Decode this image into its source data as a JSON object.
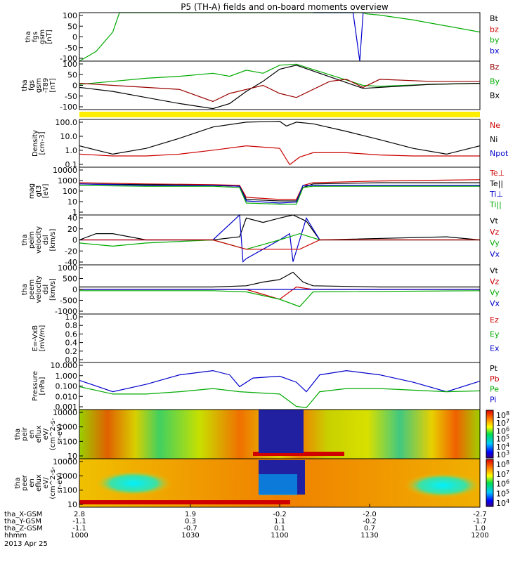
{
  "title": "P5 (TH-A) fields and on-board moments overview",
  "panels": [
    {
      "id": "fgs",
      "ylabel": [
        "tha",
        "fgs",
        "gsm",
        "[nT]"
      ],
      "yticks": [
        "100",
        "50",
        "0",
        "-50",
        "-100"
      ],
      "legend": [
        {
          "label": "Bt",
          "color": "#000000"
        },
        {
          "label": "bz",
          "color": "#cc0000"
        },
        {
          "label": "by",
          "color": "#00aa00"
        },
        {
          "label": "bx",
          "color": "#0000cc"
        }
      ]
    },
    {
      "id": "fgs_zoom",
      "ylabel": [
        "tha",
        "fgs",
        "gsm",
        "-T89",
        "[nT]"
      ],
      "yticks": [
        "100",
        "50",
        "0",
        "-50",
        "-100"
      ],
      "legend": [
        {
          "label": "Bz",
          "color": "#990000"
        },
        {
          "label": "By",
          "color": "#00aa00"
        },
        {
          "label": "Bx",
          "color": "#000000"
        }
      ]
    },
    {
      "id": "density",
      "ylabel": [
        "Density",
        "[cm-3]"
      ],
      "yticks": [
        "100.0",
        "10.0",
        "1.0",
        "0.1"
      ],
      "legend": [
        {
          "label": "Ne",
          "color": "#cc0000"
        },
        {
          "label": "Ni",
          "color": "#000000"
        },
        {
          "label": "Npot",
          "color": "#0000cc"
        }
      ]
    },
    {
      "id": "temperature",
      "ylabel": [
        "mag",
        "gt3",
        "[eV]"
      ],
      "yticks": [
        "10000",
        "1000",
        "100",
        "10",
        "1"
      ],
      "legend": [
        {
          "label": "Te⊥",
          "color": "#cc0000"
        },
        {
          "label": "Te||",
          "color": "#000000"
        },
        {
          "label": "Ti⊥",
          "color": "#0000cc"
        },
        {
          "label": "Ti||",
          "color": "#00aa00"
        }
      ]
    },
    {
      "id": "peim_velocity",
      "ylabel": [
        "tha",
        "peim",
        "velocity",
        "dsl",
        "[km/s]"
      ],
      "yticks": [
        "40",
        "20",
        "0",
        "-20",
        "-40"
      ],
      "legend": [
        {
          "label": "Vt",
          "color": "#000000"
        },
        {
          "label": "Vz",
          "color": "#cc0000"
        },
        {
          "label": "Vy",
          "color": "#00aa00"
        },
        {
          "label": "Vx",
          "color": "#0000cc"
        }
      ]
    },
    {
      "id": "peem_velocity",
      "ylabel": [
        "tha",
        "peem",
        "velocity",
        "dsl",
        "[km/s]"
      ],
      "yticks": [
        "1000",
        "500",
        "0",
        "-500",
        "-1000"
      ],
      "legend": [
        {
          "label": "Vt",
          "color": "#000000"
        },
        {
          "label": "Vz",
          "color": "#cc0000"
        },
        {
          "label": "Vy",
          "color": "#00aa00"
        },
        {
          "label": "Vx",
          "color": "#0000cc"
        }
      ]
    },
    {
      "id": "efield",
      "ylabel": [
        "E=-VxB",
        "[mV/m]"
      ],
      "yticks": [
        "1.0",
        "0.8",
        "0.6",
        "0.4",
        "0.2",
        "0.0"
      ],
      "legend": [
        {
          "label": "Ez",
          "color": "#cc0000"
        },
        {
          "label": "Ey",
          "color": "#00aa00"
        },
        {
          "label": "Ex",
          "color": "#0000cc"
        }
      ]
    },
    {
      "id": "pressure",
      "ylabel": [
        "Pressure",
        "[nPa]"
      ],
      "yticks": [
        "10.000",
        "1.000",
        "0.100",
        "0.010",
        "0.001"
      ],
      "legend": [
        {
          "label": "Pt",
          "color": "#000000"
        },
        {
          "label": "Pb",
          "color": "#cc0000"
        },
        {
          "label": "Pe",
          "color": "#00aa00"
        },
        {
          "label": "Pi",
          "color": "#0000cc"
        }
      ]
    },
    {
      "id": "peir_spec",
      "ylabel": [
        "tha",
        "peir",
        "en",
        "eflux",
        "eV/",
        "(cm^2-s-",
        "sr-eV)"
      ],
      "yticks": [
        "10000",
        "1000",
        "100",
        "10"
      ],
      "colorbar": [
        "10^8",
        "10^7",
        "10^6",
        "10^5",
        "10^4",
        "10^3"
      ]
    },
    {
      "id": "peer_spec",
      "ylabel": [
        "tha",
        "peer",
        "en",
        "eflux",
        "eV/",
        "(cm^2-s-",
        "sr-eV)"
      ],
      "yticks": [
        "10000",
        "1000",
        "100",
        "10"
      ],
      "colorbar": [
        "10^8",
        "10^7",
        "10^6",
        "10^5",
        "10^4"
      ]
    }
  ],
  "footer": {
    "rows": [
      {
        "label": "tha_X-GSM",
        "values": [
          "2.8",
          "1.9",
          "-0.2",
          "-2.0",
          "-2.7"
        ]
      },
      {
        "label": "tha_Y-GSM",
        "values": [
          "-1.1",
          "0.3",
          "1.1",
          "-0.2",
          "-1.7"
        ]
      },
      {
        "label": "tha_Z-GSM",
        "values": [
          "-1.1",
          "-0.7",
          "0.1",
          "0.7",
          "1.0"
        ]
      },
      {
        "label": "hhmm",
        "values": [
          "1000",
          "1030",
          "1100",
          "1130",
          "1200"
        ]
      }
    ],
    "date": "2013 Apr 25"
  },
  "chart_data": {
    "type": "line",
    "title": "P5 (TH-A) fields and on-board moments overview",
    "x": [
      "1000",
      "1030",
      "1100",
      "1130",
      "1200"
    ],
    "xlabel": "hhmm",
    "date": "2013 Apr 25",
    "panels": [
      {
        "name": "tha fgs gsm [nT]",
        "ylim": [
          -100,
          100
        ],
        "series": [
          {
            "name": "by",
            "t": [
              1000,
              1005,
              1010,
              1012,
              1020,
              1045,
              1055,
              1110,
              1120,
              1125,
              1126,
              1130,
              1140,
              1200
            ],
            "values": [
              -100,
              -60,
              20,
              100,
              100,
              100,
              100,
              100,
              100,
              100,
              95,
              90,
              70,
              20
            ]
          },
          {
            "name": "bx",
            "t": [
              1110,
              1115,
              1122,
              1124,
              1125
            ],
            "values": [
              100,
              100,
              100,
              -100,
              100
            ]
          }
        ]
      },
      {
        "name": "tha fgs gsm -T89 [nT]",
        "ylim": [
          -120,
          120
        ],
        "series": [
          {
            "name": "By",
            "t": [
              1000,
              1010,
              1020,
              1030,
              1040,
              1045,
              1050,
              1055,
              1100,
              1105,
              1125,
              1130,
              1145,
              1200
            ],
            "values": [
              5,
              20,
              35,
              45,
              60,
              45,
              75,
              60,
              100,
              105,
              0,
              -5,
              5,
              10
            ]
          },
          {
            "name": "Bx",
            "t": [
              1000,
              1010,
              1020,
              1030,
              1040,
              1045,
              1050,
              1055,
              1100,
              1105,
              1125,
              1130,
              1145,
              1200
            ],
            "values": [
              -10,
              -30,
              -60,
              -90,
              -115,
              -90,
              -30,
              20,
              80,
              100,
              -15,
              -10,
              5,
              10
            ]
          },
          {
            "name": "Bz",
            "t": [
              1000,
              1010,
              1020,
              1030,
              1040,
              1045,
              1050,
              1055,
              1100,
              1105,
              1115,
              1120,
              1125,
              1130,
              1145,
              1200
            ],
            "values": [
              10,
              0,
              -10,
              -20,
              -80,
              -40,
              -20,
              0,
              -40,
              -60,
              20,
              30,
              -10,
              30,
              20,
              20
            ]
          }
        ]
      },
      {
        "name": "Density [cm-3]",
        "scale": "log",
        "ylim": [
          0.1,
          200
        ],
        "series": [
          {
            "name": "Ni",
            "t": [
              1000,
              1010,
              1020,
              1030,
              1040,
              1050,
              1100,
              1102,
              1105,
              1110,
              1120,
              1130,
              1140,
              1150,
              1200
            ],
            "values": [
              3,
              0.8,
              2,
              10,
              60,
              130,
              150,
              70,
              130,
              100,
              30,
              8,
              2,
              0.8,
              3
            ]
          },
          {
            "name": "Ne",
            "t": [
              1000,
              1010,
              1020,
              1030,
              1040,
              1050,
              1100,
              1103,
              1106,
              1110,
              1120,
              1130,
              1140,
              1150,
              1200
            ],
            "values": [
              0.8,
              0.6,
              0.6,
              0.8,
              1.5,
              3,
              2,
              0.15,
              0.5,
              1.0,
              1.0,
              0.7,
              0.6,
              0.6,
              0.6
            ]
          }
        ]
      },
      {
        "name": "mag gt3 [eV]",
        "scale": "log",
        "ylim": [
          1,
          10000
        ],
        "series": [
          {
            "name": "Te⊥",
            "t": [
              1000,
              1020,
              1040,
              1048,
              1050,
              1100,
              1105,
              1107,
              1110,
              1130,
              1200
            ],
            "values": [
              500,
              400,
              350,
              300,
              30,
              20,
              20,
              300,
              500,
              700,
              900
            ]
          },
          {
            "name": "Te||",
            "t": [
              1000,
              1020,
              1040,
              1048,
              1050,
              1100,
              1105,
              1107,
              1110,
              1130,
              1200
            ],
            "values": [
              400,
              350,
              300,
              250,
              20,
              15,
              15,
              200,
              400,
              500,
              500
            ]
          },
          {
            "name": "Ti⊥",
            "t": [
              1000,
              1020,
              1040,
              1048,
              1050,
              1100,
              1105,
              1107,
              1110,
              1130,
              1200
            ],
            "values": [
              400,
              300,
              300,
              250,
              15,
              10,
              12,
              300,
              300,
              300,
              300
            ]
          },
          {
            "name": "Ti||",
            "t": [
              1000,
              1020,
              1040,
              1048,
              1050,
              1100,
              1105,
              1107,
              1110,
              1130,
              1200
            ],
            "values": [
              300,
              250,
              250,
              200,
              10,
              8,
              8,
              200,
              250,
              250,
              250
            ]
          }
        ]
      },
      {
        "name": "tha peim velocity dsl [km/s]",
        "ylim": [
          -40,
          40
        ],
        "series": [
          {
            "name": "Vt",
            "t": [
              1000,
              1005,
              1010,
              1020,
              1040,
              1048,
              1050,
              1055,
              1100,
              1104,
              1108,
              1112,
              1150,
              1200
            ],
            "values": [
              0,
              10,
              10,
              0,
              0,
              5,
              35,
              28,
              35,
              40,
              30,
              0,
              5,
              0
            ]
          },
          {
            "name": "Vx",
            "t": [
              1000,
              1040,
              1048,
              1049,
              1050,
              1055,
              1100,
              1103,
              1104,
              1108,
              1112,
              1200
            ],
            "values": [
              0,
              0,
              40,
              -35,
              -30,
              -15,
              0,
              10,
              -35,
              35,
              0,
              0
            ]
          },
          {
            "name": "Vy",
            "t": [
              1000,
              1010,
              1020,
              1040,
              1050,
              1100,
              1106,
              1112,
              1200
            ],
            "values": [
              -5,
              -10,
              -5,
              0,
              -15,
              0,
              10,
              0,
              0
            ]
          },
          {
            "name": "Vz",
            "t": [
              1000,
              1040,
              1050,
              1100,
              1106,
              1112,
              1200
            ],
            "values": [
              0,
              0,
              -15,
              -15,
              -15,
              0,
              0
            ]
          }
        ]
      },
      {
        "name": "tha peem velocity dsl [km/s]",
        "ylim": [
          -1000,
          1000
        ],
        "series": [
          {
            "name": "Vt",
            "t": [
              1000,
              1020,
              1040,
              1050,
              1055,
              1100,
              1104,
              1107,
              1110,
              1130,
              1200
            ],
            "values": [
              100,
              100,
              100,
              150,
              300,
              400,
              700,
              300,
              150,
              100,
              100
            ]
          },
          {
            "name": "Vz",
            "t": [
              1000,
              1050,
              1055,
              1100,
              1105,
              1110,
              1200
            ],
            "values": [
              0,
              0,
              -200,
              -400,
              100,
              0,
              0
            ]
          },
          {
            "name": "Vy",
            "t": [
              1000,
              1040,
              1050,
              1100,
              1106,
              1110,
              1200
            ],
            "values": [
              -50,
              -50,
              -100,
              -400,
              -700,
              -100,
              -50
            ]
          },
          {
            "name": "Vx",
            "t": [
              1000,
              1050,
              1100,
              1110,
              1200
            ],
            "values": [
              0,
              0,
              0,
              0,
              0
            ]
          }
        ]
      },
      {
        "name": "E=-VxB [mV/m]",
        "ylim": [
          0,
          1
        ],
        "series": []
      },
      {
        "name": "Pressure [nPa]",
        "scale": "log",
        "ylim": [
          0.001,
          30
        ],
        "series": [
          {
            "name": "Pi",
            "t": [
              1000,
              1010,
              1020,
              1030,
              1040,
              1045,
              1048,
              1052,
              1100,
              1105,
              1108,
              1112,
              1120,
              1130,
              1140,
              1150,
              1200
            ],
            "values": [
              0.6,
              0.05,
              0.25,
              2,
              5,
              2,
              0.15,
              1,
              1.5,
              0.4,
              0.05,
              2,
              5,
              2,
              0.4,
              0.05,
              0.5
            ]
          },
          {
            "name": "Pe",
            "t": [
              1000,
              1010,
              1020,
              1030,
              1040,
              1048,
              1100,
              1105,
              1108,
              1112,
              1120,
              1130,
              1150,
              1200
            ],
            "values": [
              0.15,
              0.03,
              0.03,
              0.05,
              0.1,
              0.05,
              0.03,
              0.002,
              0.0015,
              0.05,
              0.1,
              0.1,
              0.05,
              0.06
            ]
          }
        ]
      }
    ]
  }
}
